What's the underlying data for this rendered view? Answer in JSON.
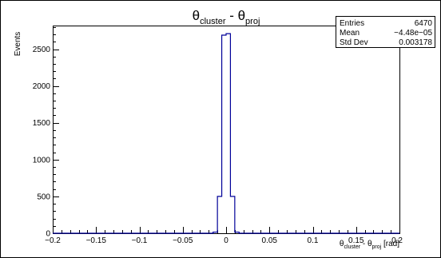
{
  "chart_data": {
    "type": "histogram",
    "title": {
      "base": "θ",
      "sub1": "cluster",
      "mid": " - θ",
      "sub2": "proj"
    },
    "xlabel": {
      "base": "θ",
      "sub1": "cluster",
      "mid": " - θ",
      "sub2": "proj",
      "unit": " [rad]"
    },
    "ylabel": "Events",
    "xlim": [
      -0.2,
      0.2
    ],
    "ylim": [
      0,
      2820
    ],
    "x_ticks": [
      -0.2,
      -0.15,
      -0.1,
      -0.05,
      0,
      0.05,
      0.1,
      0.15,
      0.2
    ],
    "x_tick_labels": [
      "−0.2",
      "−0.15",
      "−0.1",
      "−0.05",
      "0",
      "0.05",
      "0.1",
      "0.15",
      "0.2"
    ],
    "y_ticks": [
      0,
      500,
      1000,
      1500,
      2000,
      2500
    ],
    "y_tick_labels": [
      "0",
      "500",
      "1000",
      "1500",
      "2000",
      "2500"
    ],
    "bin_edges": [
      -0.015,
      -0.01,
      -0.005,
      0.0,
      0.005,
      0.01,
      0.015
    ],
    "bin_values": [
      15,
      500,
      2690,
      2710,
      500,
      15
    ],
    "line_color": "#000099",
    "grid": false,
    "legend": "none",
    "stats_box": {
      "placement": "top-right",
      "rows": [
        {
          "label": "Entries",
          "value": "6470"
        },
        {
          "label": "Mean",
          "value": "−4.48e−05"
        },
        {
          "label": "Std Dev",
          "value": "0.003178"
        }
      ]
    }
  }
}
